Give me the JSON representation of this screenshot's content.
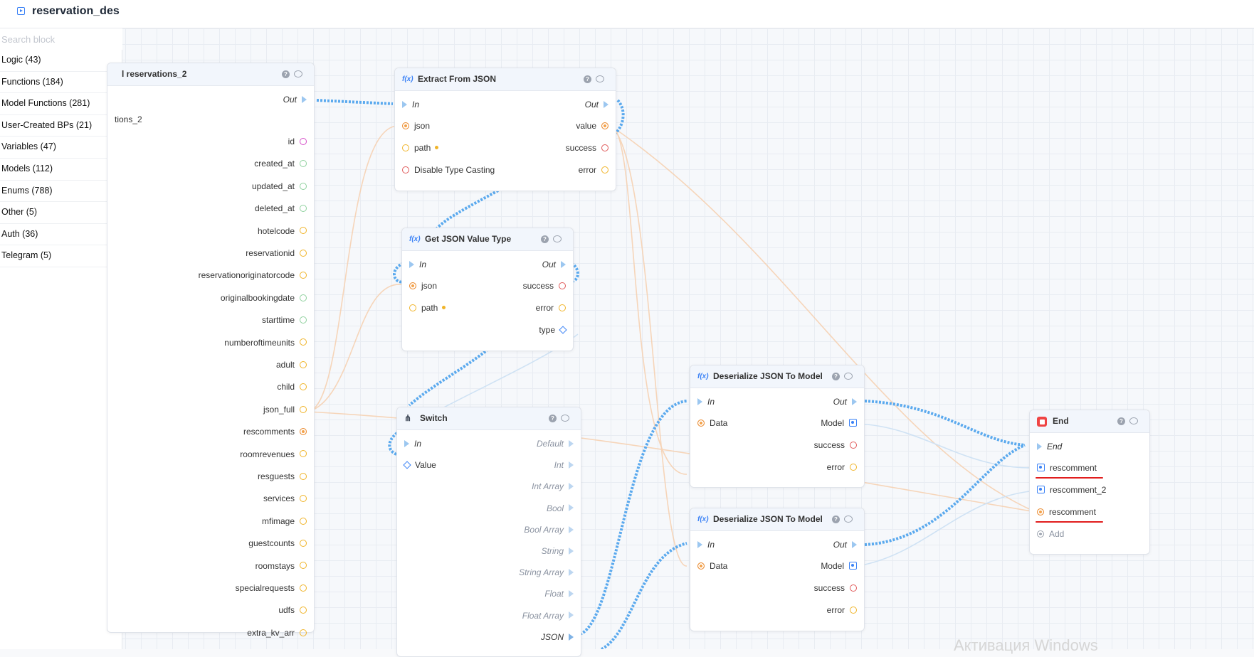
{
  "header": {
    "title": "reservation_des"
  },
  "sidebar": {
    "search_placeholder": "Search block",
    "categories": [
      "Logic (43)",
      "Functions (184)",
      "Model Functions (281)",
      "User-Created BPs (21)",
      "Variables (47)",
      "Models (112)",
      "Enums (788)",
      "Other (5)",
      "Auth (36)",
      "Telegram (5)"
    ]
  },
  "nodes": {
    "reservations": {
      "title": "l reservations_2",
      "out_label": "Out",
      "left_label": "tions_2",
      "fields": [
        "id",
        "created_at",
        "updated_at",
        "deleted_at",
        "hotelcode",
        "reservationid",
        "reservationoriginatorcode",
        "originalbookingdate",
        "starttime",
        "numberoftimeunits",
        "adult",
        "child",
        "json_full",
        "rescomments",
        "roomrevenues",
        "resguests",
        "services",
        "mfimage",
        "guestcounts",
        "roomstays",
        "specialrequests",
        "udfs",
        "extra_kv_arr"
      ]
    },
    "extract": {
      "title": "Extract From JSON",
      "in": "In",
      "out": "Out",
      "json": "json",
      "path": "path",
      "disable": "Disable Type Casting",
      "value": "value",
      "success": "success",
      "error": "error"
    },
    "gettype": {
      "title": "Get JSON Value Type",
      "in": "In",
      "out": "Out",
      "json": "json",
      "path": "path",
      "success": "success",
      "error": "error",
      "type": "type"
    },
    "switch": {
      "title": "Switch",
      "in": "In",
      "value": "Value",
      "outputs": [
        "Default",
        "Int",
        "Int Array",
        "Bool",
        "Bool Array",
        "String",
        "String Array",
        "Float",
        "Float Array",
        "JSON"
      ]
    },
    "deser1": {
      "title": "Deserialize JSON To Model",
      "in": "In",
      "out": "Out",
      "data": "Data",
      "model": "Model",
      "success": "success",
      "error": "error"
    },
    "deser2": {
      "title": "Deserialize JSON To Model",
      "in": "In",
      "out": "Out",
      "data": "Data",
      "model": "Model",
      "success": "success",
      "error": "error"
    },
    "end": {
      "title": "End",
      "end": "End",
      "inputs": [
        "rescomment",
        "rescomment_2",
        "rescomment"
      ],
      "add": "Add"
    }
  },
  "colors": {
    "accent": "#3b82f6",
    "exec_wire": "#5aa9ee",
    "data_wire": "#f5c6a0",
    "highlight": "#e11d1d"
  },
  "watermark": "Активация Windows"
}
